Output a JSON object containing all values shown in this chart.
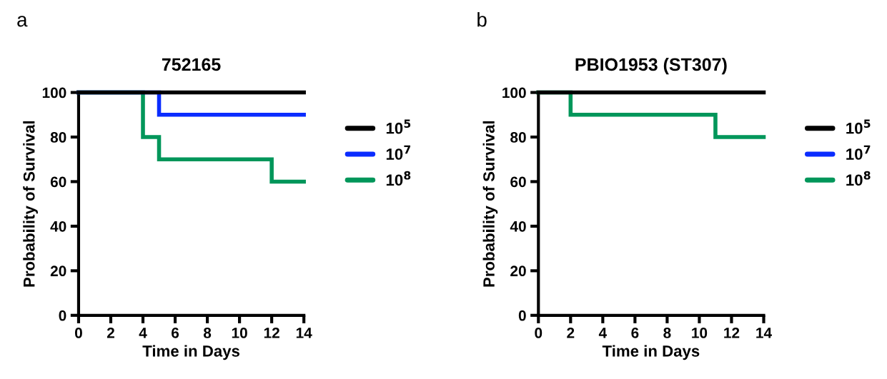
{
  "chart_data": [
    {
      "type": "step",
      "title": "752165",
      "xlabel": "Time in Days",
      "ylabel": "Probability of Survival",
      "annotations": [
        "a"
      ],
      "xlim": [
        0,
        14
      ],
      "xticks": [
        0,
        2,
        4,
        6,
        8,
        10,
        12,
        14
      ],
      "ylim": [
        0,
        100
      ],
      "yticks": [
        0,
        20,
        40,
        60,
        80,
        100
      ],
      "grid": false,
      "legend": "right",
      "series": [
        {
          "name": "10$^{5}$",
          "color": "#000000",
          "x": [
            0,
            14
          ],
          "values": [
            100,
            100
          ]
        },
        {
          "name": "10$^{7}$",
          "color": "#0a2cff",
          "x": [
            0,
            5,
            14
          ],
          "values": [
            100,
            90,
            90
          ]
        },
        {
          "name": "10$^{8}$",
          "color": "#00965a",
          "x": [
            0,
            4,
            5,
            12,
            14
          ],
          "values": [
            100,
            80,
            70,
            60,
            60
          ]
        }
      ]
    },
    {
      "type": "step",
      "title": "PBIO1953 (ST307)",
      "xlabel": "Time in Days",
      "ylabel": "Probability of Survival",
      "annotations": [
        "b"
      ],
      "xlim": [
        0,
        14
      ],
      "xticks": [
        0,
        2,
        4,
        6,
        8,
        10,
        12,
        14
      ],
      "ylim": [
        0,
        100
      ],
      "yticks": [
        0,
        20,
        40,
        60,
        80,
        100
      ],
      "grid": false,
      "legend": "right",
      "series": [
        {
          "name": "10$^{5}$",
          "color": "#000000",
          "x": [
            0,
            14
          ],
          "values": [
            100,
            100
          ]
        },
        {
          "name": "10$^{7}$",
          "color": "#0a2cff"
        },
        {
          "name": "10$^{8}$",
          "color": "#00965a",
          "x": [
            0,
            2,
            11,
            14
          ],
          "values": [
            100,
            90,
            80,
            80
          ]
        }
      ]
    }
  ]
}
